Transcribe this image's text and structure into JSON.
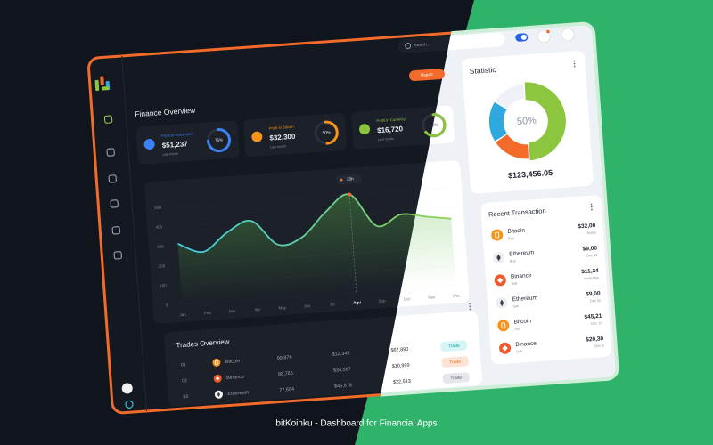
{
  "app": {
    "search_placeholder": "Search...",
    "footer": "bitKoinku - Dashboard for Financial Apps"
  },
  "finance_overview": {
    "title": "Finance Overview",
    "button": "Report",
    "cards": [
      {
        "label": "Profit in Investment",
        "amount": "$51,237",
        "note": "Last month",
        "progress": 75,
        "progress_label": "75%",
        "color": "#3b82f6"
      },
      {
        "label": "Profit in Bitcoin",
        "amount": "$32,300",
        "note": "Last month",
        "progress": 50,
        "progress_label": "50%",
        "color": "#f7931a"
      },
      {
        "label": "Profit in Currency",
        "amount": "$16,720",
        "note": "Last month",
        "progress": 65,
        "progress_label": "65%",
        "color": "#8cc63f"
      }
    ]
  },
  "chart": {
    "type": "line",
    "months": [
      "Jan",
      "Feb",
      "Mar",
      "Apr",
      "May",
      "Jun",
      "Jul",
      "Agu",
      "Sep",
      "Oct",
      "Nov",
      "Dec"
    ],
    "values": [
      310,
      260,
      350,
      400,
      270,
      300,
      420,
      500,
      330,
      380,
      360,
      340
    ],
    "ylim": [
      0,
      500
    ],
    "yticks": [
      0,
      100,
      200,
      300,
      400,
      500
    ],
    "tooltip": "23h"
  },
  "trades": {
    "title": "Trades Overview",
    "rows": [
      [
        "01",
        "Bitcoin",
        "99,876",
        "$12,345",
        "$67,890",
        "Trade"
      ],
      [
        "02",
        "Binance",
        "88,765",
        "$34,567",
        "$10,999",
        "Trade"
      ],
      [
        "03",
        "Ethereum",
        "77,654",
        "$45,678",
        "$22,543",
        "Trade"
      ]
    ]
  },
  "statistic": {
    "title": "Statistic",
    "center_label": "50%",
    "total": "$123,456.05",
    "values": [
      50,
      17,
      18,
      15
    ],
    "colors": [
      "#8cc63f",
      "#f26b2b",
      "#2fa8e0",
      "#eef1f6"
    ]
  },
  "transactions": {
    "title": "Recent Transaction",
    "items": [
      {
        "coin": "Bitcoin",
        "type": "Buy",
        "amount": "$32,00",
        "date": "Today"
      },
      {
        "coin": "Ethereum",
        "type": "Buy",
        "amount": "$9,00",
        "date": "Dec 12"
      },
      {
        "coin": "Binance",
        "type": "Sell",
        "amount": "$11,34",
        "date": "Yesterday"
      },
      {
        "coin": "Ethereum",
        "type": "Sell",
        "amount": "$9,00",
        "date": "Dec 11"
      },
      {
        "coin": "Bitcoin",
        "type": "Sell",
        "amount": "$45,21",
        "date": "Dec 10"
      },
      {
        "coin": "Binance",
        "type": "Sell",
        "amount": "$20,30",
        "date": "Dec 9"
      }
    ]
  }
}
